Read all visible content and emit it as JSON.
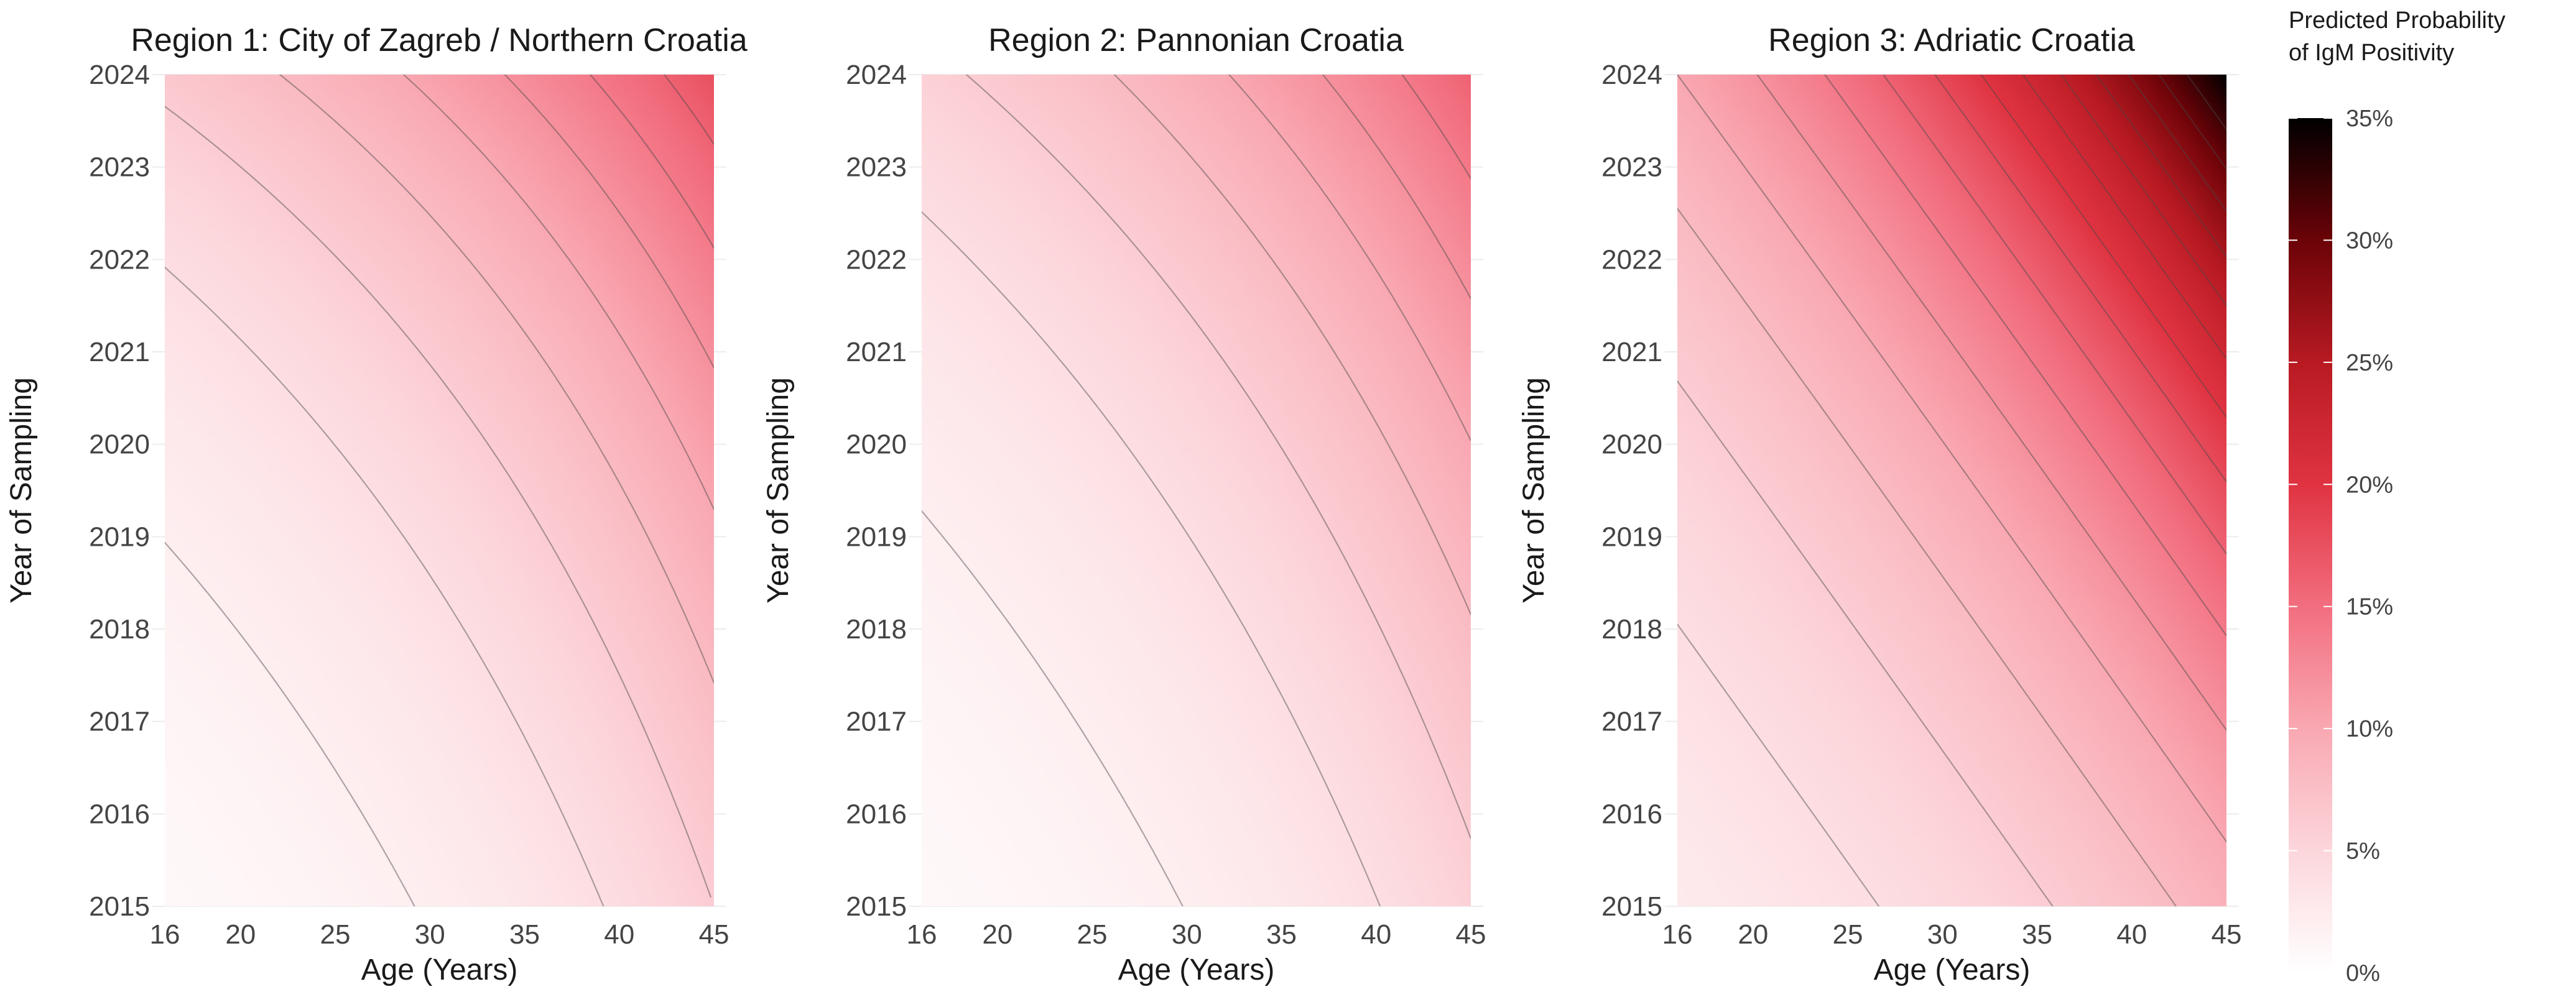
{
  "chart_data": {
    "type": "heatmap",
    "legend": {
      "title_lines": [
        "Predicted Probability",
        "of IgM Positivity"
      ],
      "range": [
        0,
        35
      ],
      "tick_values": [
        0,
        5,
        10,
        15,
        20,
        25,
        30,
        35
      ],
      "tick_labels": [
        "0%",
        "5%",
        "10%",
        "15%",
        "20%",
        "25%",
        "30%",
        "35%"
      ],
      "colors": [
        "#ffffff",
        "#fcd6db",
        "#f9a8b2",
        "#f26e7f",
        "#e03341",
        "#b81a22",
        "#6b0308",
        "#000000"
      ],
      "placement": "right"
    },
    "panels": [
      {
        "title": "Region 1: City of Zagreb / Northern Croatia",
        "xlabel": "Age (Years)",
        "ylabel": "Year of Sampling",
        "x_ticks": [
          16,
          20,
          25,
          30,
          35,
          40,
          45
        ],
        "y_ticks": [
          2015,
          2016,
          2017,
          2018,
          2019,
          2020,
          2021,
          2022,
          2023,
          2024
        ],
        "xlim": [
          16,
          45
        ],
        "ylim": [
          2015,
          2024
        ],
        "corner_values": {
          "age16_2015": 0.8,
          "age45_2015": 6.0,
          "age16_2024": 6.5,
          "age45_2024": 17.5
        },
        "contour_levels": [
          2,
          4,
          6,
          8,
          10,
          12,
          14,
          16
        ]
      },
      {
        "title": "Region 2: Pannonian Croatia",
        "xlabel": "Age (Years)",
        "ylabel": "Year of Sampling",
        "x_ticks": [
          16,
          20,
          25,
          30,
          35,
          40,
          45
        ],
        "y_ticks": [
          2015,
          2016,
          2017,
          2018,
          2019,
          2020,
          2021,
          2022,
          2023,
          2024
        ],
        "xlim": [
          16,
          45
        ],
        "ylim": [
          2015,
          2024
        ],
        "corner_values": {
          "age16_2015": 0.8,
          "age45_2015": 5.5,
          "age16_2024": 5.5,
          "age45_2024": 16.0
        },
        "contour_levels": [
          2,
          4,
          6,
          8,
          10,
          12,
          14
        ]
      },
      {
        "title": "Region 3: Adriatic Croatia",
        "xlabel": "Age (Years)",
        "ylabel": "Year of Sampling",
        "x_ticks": [
          16,
          20,
          25,
          30,
          35,
          40,
          45
        ],
        "y_ticks": [
          2015,
          2016,
          2017,
          2018,
          2019,
          2020,
          2021,
          2022,
          2023,
          2024
        ],
        "xlim": [
          16,
          45
        ],
        "ylim": [
          2015,
          2024
        ],
        "corner_values": {
          "age16_2015": 2.5,
          "age45_2015": 9.0,
          "age16_2024": 10.0,
          "age45_2024": 35.0
        },
        "contour_levels": [
          4,
          6,
          8,
          10,
          12,
          14,
          16,
          18,
          20,
          22,
          24,
          26,
          28,
          30,
          32
        ]
      }
    ]
  }
}
